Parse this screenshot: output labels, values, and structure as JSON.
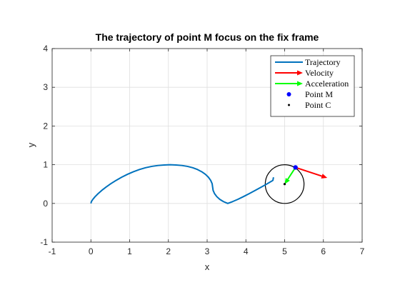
{
  "chart_data": {
    "type": "line",
    "title": "The trajectory of point M focus on the fix frame",
    "xlabel": "x",
    "ylabel": "y",
    "xlim": [
      -1,
      7
    ],
    "ylim": [
      -1,
      4
    ],
    "xticks": [
      -1,
      0,
      1,
      2,
      3,
      4,
      5,
      6,
      7
    ],
    "yticks": [
      -1,
      0,
      1,
      2,
      3,
      4
    ],
    "grid": true,
    "legend_position": "top-right",
    "series": [
      {
        "name": "Trajectory",
        "kind": "line",
        "color": "#0072BD",
        "x": [
          0.0,
          0.0125,
          0.05,
          0.1084,
          0.1855,
          0.28,
          0.3901,
          0.5135,
          0.6484,
          0.7927,
          0.9429,
          1.097,
          1.2533,
          1.41,
          1.5708,
          1.7316,
          1.8876,
          2.0443,
          2.1987,
          2.3499,
          2.4925,
          2.6281,
          2.7516,
          2.8614,
          2.9558,
          3.0328,
          3.0916,
          3.1291,
          3.1416,
          3.1541,
          3.1916,
          3.25,
          3.3271,
          3.4216,
          3.5317,
          3.6551,
          3.79,
          3.9343,
          4.0845,
          4.2386,
          4.3949,
          4.55,
          4.6967,
          4.7124
        ],
        "y": [
          0.0,
          0.0468,
          0.1047,
          0.1749,
          0.2524,
          0.3361,
          0.4216,
          0.5092,
          0.5947,
          0.6764,
          0.7514,
          0.8183,
          0.8755,
          0.9219,
          0.9568,
          0.9798,
          0.9933,
          1.0,
          0.9933,
          0.9798,
          0.9568,
          0.9219,
          0.8755,
          0.8183,
          0.7514,
          0.6764,
          0.5947,
          0.5092,
          0.4216,
          0.3361,
          0.2524,
          0.1749,
          0.1047,
          0.0468,
          0.0,
          0.0468,
          0.1047,
          0.1749,
          0.2524,
          0.3361,
          0.4216,
          0.5092,
          0.5947,
          0.6764
        ]
      },
      {
        "name": "Velocity",
        "kind": "arrow",
        "color": "#FF0000",
        "from": [
          5.28,
          0.93
        ],
        "to": [
          6.1,
          0.66
        ]
      },
      {
        "name": "Acceleration",
        "kind": "arrow",
        "color": "#00FF00",
        "from": [
          5.28,
          0.93
        ],
        "to": [
          5.0,
          0.5
        ]
      },
      {
        "name": "Point M",
        "kind": "point",
        "color": "#0000FF",
        "x": [
          5.28
        ],
        "y": [
          0.93
        ]
      },
      {
        "name": "Point C",
        "kind": "point",
        "color": "#000000",
        "x": [
          5.0
        ],
        "y": [
          0.5
        ]
      }
    ],
    "circle": {
      "center": [
        5.0,
        0.5
      ],
      "radius": 0.5,
      "color": "#000000"
    }
  }
}
